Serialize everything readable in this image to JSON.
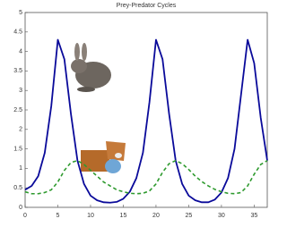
{
  "chart_data": {
    "type": "line",
    "title": "Prey-Predator Cycles",
    "x": [
      0,
      1,
      2,
      3,
      4,
      5,
      6,
      7,
      8,
      9,
      10,
      11,
      12,
      13,
      14,
      15,
      16,
      17,
      18,
      19,
      20,
      21,
      22,
      23,
      24,
      25,
      26,
      27,
      28,
      29,
      30,
      31,
      32,
      33,
      34,
      35,
      36,
      37
    ],
    "series": [
      {
        "color": "#0a0a9a",
        "style": "solid",
        "values": [
          0.45,
          0.55,
          0.8,
          1.4,
          2.6,
          4.3,
          3.8,
          2.4,
          1.2,
          0.6,
          0.3,
          0.18,
          0.13,
          0.12,
          0.14,
          0.22,
          0.4,
          0.75,
          1.4,
          2.7,
          4.3,
          3.8,
          2.4,
          1.2,
          0.6,
          0.3,
          0.18,
          0.13,
          0.13,
          0.2,
          0.38,
          0.75,
          1.5,
          2.9,
          4.3,
          3.7,
          2.3,
          1.2
        ]
      },
      {
        "color": "#2e9a2e",
        "style": "dashed",
        "values": [
          0.4,
          0.35,
          0.35,
          0.38,
          0.45,
          0.65,
          0.95,
          1.15,
          1.2,
          1.1,
          0.95,
          0.8,
          0.65,
          0.55,
          0.45,
          0.4,
          0.36,
          0.35,
          0.36,
          0.42,
          0.6,
          0.9,
          1.12,
          1.2,
          1.12,
          0.97,
          0.8,
          0.66,
          0.55,
          0.46,
          0.4,
          0.36,
          0.35,
          0.38,
          0.55,
          0.85,
          1.1,
          1.2
        ]
      }
    ],
    "xlim": [
      0,
      37
    ],
    "xticks": [
      0,
      5,
      10,
      15,
      20,
      25,
      30,
      35
    ],
    "ylim": [
      0,
      5
    ],
    "yticks": [
      0,
      0.5,
      1,
      1.5,
      2,
      2.5,
      3,
      3.5,
      4,
      4.5,
      5
    ]
  }
}
